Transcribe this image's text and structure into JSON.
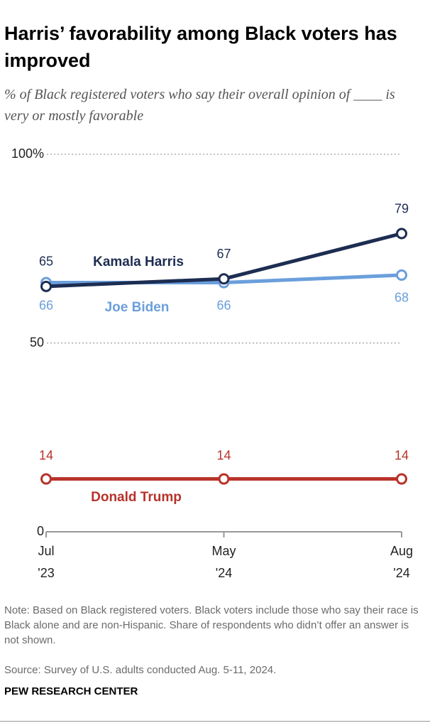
{
  "chart_data": {
    "type": "line",
    "title": "Harris’ favorability among Black voters has improved",
    "subtitle": "% of Black registered voters who say their overall opinion of ____ is very or mostly favorable",
    "categories": [
      "Jul '23",
      "May '24",
      "Aug '24"
    ],
    "series": [
      {
        "name": "Kamala Harris",
        "color": "#1d2d52",
        "values": [
          65,
          67,
          79
        ]
      },
      {
        "name": "Joe Biden",
        "color": "#6b9fdc",
        "values": [
          66,
          66,
          68
        ]
      },
      {
        "name": "Donald Trump",
        "color": "#b8322a",
        "values": [
          14,
          14,
          14
        ]
      }
    ],
    "ylim": [
      0,
      100
    ],
    "yticks": [
      0,
      50,
      {
        "value": 100,
        "label": "100%"
      }
    ],
    "grid": true,
    "note": "Note: Based on Black registered voters. Black voters include those who say their race is Black alone and are non-Hispanic. Share of respondents who didn’t offer an answer is not shown.",
    "source": "Source: Survey of U.S. adults conducted Aug. 5-11, 2024.",
    "footer": "PEW RESEARCH CENTER"
  }
}
